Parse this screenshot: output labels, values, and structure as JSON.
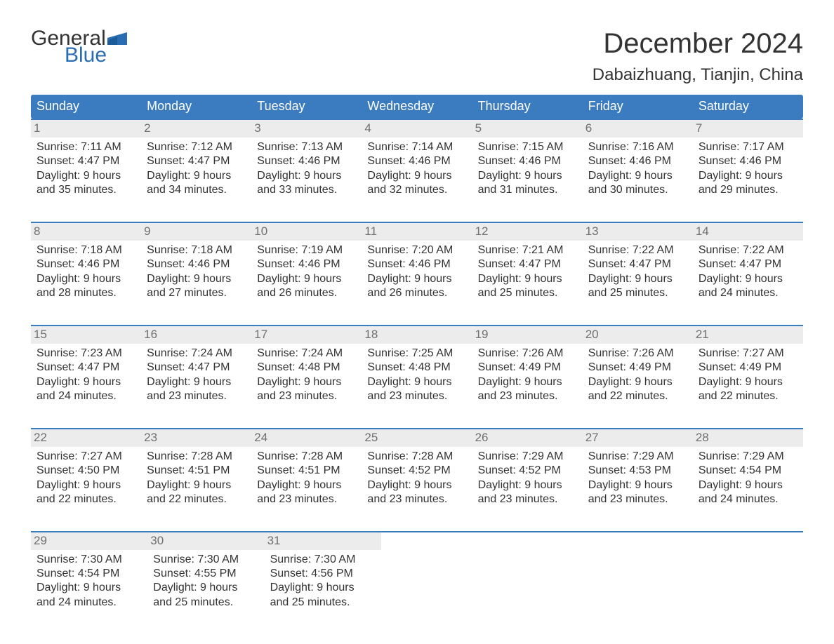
{
  "logo": {
    "word1": "General",
    "word2": "Blue",
    "flag_color": "#2a6db2"
  },
  "title": "December 2024",
  "location": "Dabaizhuang, Tianjin, China",
  "colors": {
    "header_bg": "#3b7bbf",
    "header_text": "#ffffff",
    "daynum_bg": "#ececec",
    "daynum_text": "#707070",
    "body_text": "#333333",
    "rule": "#3b7bbf"
  },
  "dow": [
    "Sunday",
    "Monday",
    "Tuesday",
    "Wednesday",
    "Thursday",
    "Friday",
    "Saturday"
  ],
  "weeks": [
    [
      {
        "n": "1",
        "sr": "7:11 AM",
        "ss": "4:47 PM",
        "dl": "9 hours",
        "dm": "35 minutes."
      },
      {
        "n": "2",
        "sr": "7:12 AM",
        "ss": "4:47 PM",
        "dl": "9 hours",
        "dm": "34 minutes."
      },
      {
        "n": "3",
        "sr": "7:13 AM",
        "ss": "4:46 PM",
        "dl": "9 hours",
        "dm": "33 minutes."
      },
      {
        "n": "4",
        "sr": "7:14 AM",
        "ss": "4:46 PM",
        "dl": "9 hours",
        "dm": "32 minutes."
      },
      {
        "n": "5",
        "sr": "7:15 AM",
        "ss": "4:46 PM",
        "dl": "9 hours",
        "dm": "31 minutes."
      },
      {
        "n": "6",
        "sr": "7:16 AM",
        "ss": "4:46 PM",
        "dl": "9 hours",
        "dm": "30 minutes."
      },
      {
        "n": "7",
        "sr": "7:17 AM",
        "ss": "4:46 PM",
        "dl": "9 hours",
        "dm": "29 minutes."
      }
    ],
    [
      {
        "n": "8",
        "sr": "7:18 AM",
        "ss": "4:46 PM",
        "dl": "9 hours",
        "dm": "28 minutes."
      },
      {
        "n": "9",
        "sr": "7:18 AM",
        "ss": "4:46 PM",
        "dl": "9 hours",
        "dm": "27 minutes."
      },
      {
        "n": "10",
        "sr": "7:19 AM",
        "ss": "4:46 PM",
        "dl": "9 hours",
        "dm": "26 minutes."
      },
      {
        "n": "11",
        "sr": "7:20 AM",
        "ss": "4:46 PM",
        "dl": "9 hours",
        "dm": "26 minutes."
      },
      {
        "n": "12",
        "sr": "7:21 AM",
        "ss": "4:47 PM",
        "dl": "9 hours",
        "dm": "25 minutes."
      },
      {
        "n": "13",
        "sr": "7:22 AM",
        "ss": "4:47 PM",
        "dl": "9 hours",
        "dm": "25 minutes."
      },
      {
        "n": "14",
        "sr": "7:22 AM",
        "ss": "4:47 PM",
        "dl": "9 hours",
        "dm": "24 minutes."
      }
    ],
    [
      {
        "n": "15",
        "sr": "7:23 AM",
        "ss": "4:47 PM",
        "dl": "9 hours",
        "dm": "24 minutes."
      },
      {
        "n": "16",
        "sr": "7:24 AM",
        "ss": "4:47 PM",
        "dl": "9 hours",
        "dm": "23 minutes."
      },
      {
        "n": "17",
        "sr": "7:24 AM",
        "ss": "4:48 PM",
        "dl": "9 hours",
        "dm": "23 minutes."
      },
      {
        "n": "18",
        "sr": "7:25 AM",
        "ss": "4:48 PM",
        "dl": "9 hours",
        "dm": "23 minutes."
      },
      {
        "n": "19",
        "sr": "7:26 AM",
        "ss": "4:49 PM",
        "dl": "9 hours",
        "dm": "23 minutes."
      },
      {
        "n": "20",
        "sr": "7:26 AM",
        "ss": "4:49 PM",
        "dl": "9 hours",
        "dm": "22 minutes."
      },
      {
        "n": "21",
        "sr": "7:27 AM",
        "ss": "4:49 PM",
        "dl": "9 hours",
        "dm": "22 minutes."
      }
    ],
    [
      {
        "n": "22",
        "sr": "7:27 AM",
        "ss": "4:50 PM",
        "dl": "9 hours",
        "dm": "22 minutes."
      },
      {
        "n": "23",
        "sr": "7:28 AM",
        "ss": "4:51 PM",
        "dl": "9 hours",
        "dm": "22 minutes."
      },
      {
        "n": "24",
        "sr": "7:28 AM",
        "ss": "4:51 PM",
        "dl": "9 hours",
        "dm": "23 minutes."
      },
      {
        "n": "25",
        "sr": "7:28 AM",
        "ss": "4:52 PM",
        "dl": "9 hours",
        "dm": "23 minutes."
      },
      {
        "n": "26",
        "sr": "7:29 AM",
        "ss": "4:52 PM",
        "dl": "9 hours",
        "dm": "23 minutes."
      },
      {
        "n": "27",
        "sr": "7:29 AM",
        "ss": "4:53 PM",
        "dl": "9 hours",
        "dm": "23 minutes."
      },
      {
        "n": "28",
        "sr": "7:29 AM",
        "ss": "4:54 PM",
        "dl": "9 hours",
        "dm": "24 minutes."
      }
    ],
    [
      {
        "n": "29",
        "sr": "7:30 AM",
        "ss": "4:54 PM",
        "dl": "9 hours",
        "dm": "24 minutes."
      },
      {
        "n": "30",
        "sr": "7:30 AM",
        "ss": "4:55 PM",
        "dl": "9 hours",
        "dm": "25 minutes."
      },
      {
        "n": "31",
        "sr": "7:30 AM",
        "ss": "4:56 PM",
        "dl": "9 hours",
        "dm": "25 minutes."
      },
      null,
      null,
      null,
      null
    ]
  ],
  "labels": {
    "sunrise": "Sunrise: ",
    "sunset": "Sunset: ",
    "daylight": "Daylight: ",
    "and": "and "
  }
}
